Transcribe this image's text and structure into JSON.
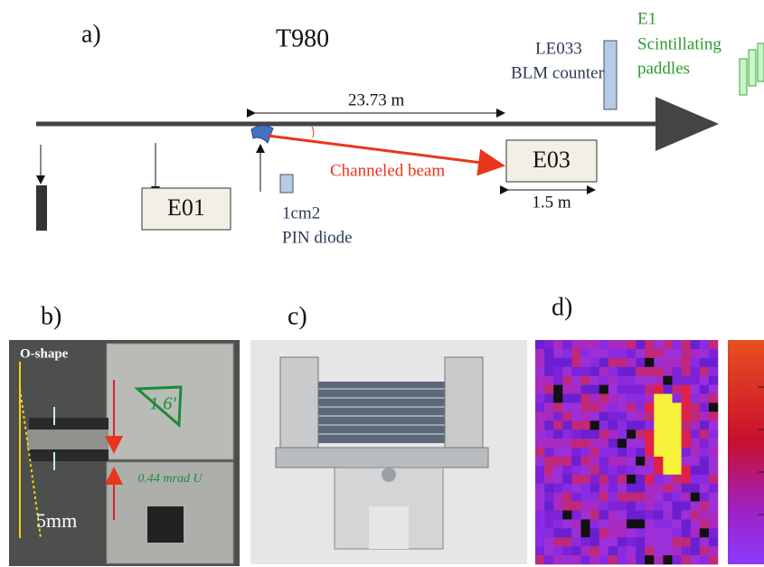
{
  "panel_a": {
    "label": "a)",
    "title": "T980",
    "blm": {
      "name": "LE033",
      "label": "BLM counter"
    },
    "e1": {
      "name": "E1",
      "lines": [
        "Scintillating",
        "paddles"
      ]
    },
    "distance": "23.73 m",
    "beam": "Channeled beam",
    "e03": {
      "label": "E03",
      "width": "1.5 m"
    },
    "e01": "E01",
    "pin": [
      "1cm2",
      "PIN diode"
    ]
  },
  "panel_b": {
    "label": "b)",
    "shape": "O-shape",
    "gap": "5mm",
    "notes": [
      "1.6'",
      "0.44 mrad U"
    ]
  },
  "panel_c": {
    "label": "c)"
  },
  "panel_d": {
    "label": "d)"
  }
}
